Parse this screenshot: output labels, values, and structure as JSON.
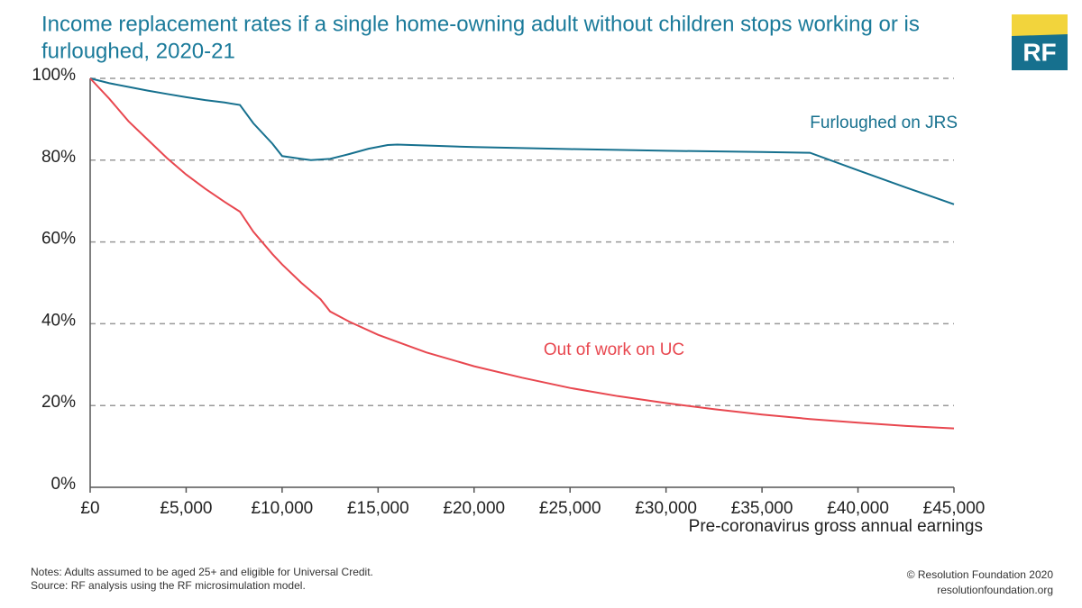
{
  "chart_data": {
    "type": "line",
    "title": "Income replacement rates if a single home-owning adult without children stops working or is furloughed, 2020-21",
    "x_label": "Pre-coronavirus gross annual earnings",
    "xlim": [
      0,
      45000
    ],
    "ylim": [
      0,
      100
    ],
    "xticks": [
      {
        "value": 0,
        "label": "£0"
      },
      {
        "value": 5000,
        "label": "£5,000"
      },
      {
        "value": 10000,
        "label": "£10,000"
      },
      {
        "value": 15000,
        "label": "£15,000"
      },
      {
        "value": 20000,
        "label": "£20,000"
      },
      {
        "value": 25000,
        "label": "£25,000"
      },
      {
        "value": 30000,
        "label": "£30,000"
      },
      {
        "value": 35000,
        "label": "£35,000"
      },
      {
        "value": 40000,
        "label": "£40,000"
      },
      {
        "value": 45000,
        "label": "£45,000"
      }
    ],
    "yticks": [
      {
        "value": 0,
        "label": "0%"
      },
      {
        "value": 20,
        "label": "20%"
      },
      {
        "value": 40,
        "label": "40%"
      },
      {
        "value": 60,
        "label": "60%"
      },
      {
        "value": 80,
        "label": "80%"
      },
      {
        "value": 100,
        "label": "100%"
      }
    ],
    "grid": true,
    "series": [
      {
        "name": "Furloughed on JRS",
        "color": "#16708e",
        "x": [
          0,
          1000,
          2000,
          3000,
          4000,
          5000,
          6000,
          7000,
          7800,
          8500,
          9500,
          10000,
          11000,
          11500,
          12500,
          13500,
          14500,
          15500,
          16000,
          18000,
          20000,
          25000,
          30000,
          35000,
          37500,
          40000,
          42500,
          45000
        ],
        "values": [
          100,
          98.8,
          97.9,
          97,
          96.2,
          95.4,
          94.7,
          94.1,
          93.5,
          89,
          84,
          81,
          80.3,
          80,
          80.3,
          81.5,
          82.8,
          83.7,
          83.8,
          83.5,
          83.2,
          82.7,
          82.3,
          82,
          81.8,
          77.5,
          73.3,
          69.2
        ]
      },
      {
        "name": "Out of work on UC",
        "color": "#e8474f",
        "x": [
          0,
          1000,
          2000,
          3000,
          4000,
          5000,
          6000,
          7000,
          7800,
          8500,
          9500,
          10000,
          11000,
          12000,
          12500,
          13500,
          15000,
          17500,
          20000,
          22500,
          25000,
          27500,
          30000,
          32500,
          35000,
          37500,
          40000,
          42500,
          45000
        ],
        "values": [
          100,
          95,
          89.5,
          85,
          80.5,
          76.5,
          73,
          69.8,
          67.4,
          62.5,
          57,
          54.5,
          50,
          46,
          43,
          40.5,
          37.3,
          33,
          29.6,
          26.8,
          24.3,
          22.3,
          20.6,
          19.1,
          17.8,
          16.7,
          15.8,
          15,
          14.4
        ]
      }
    ]
  },
  "footer": {
    "notes": "Notes: Adults assumed to be aged 25+ and eligible for Universal Credit.",
    "source": "Source: RF analysis using the RF microsimulation model.",
    "copyright": "© Resolution Foundation 2020",
    "website": "resolutionfoundation.org"
  },
  "logo": "RF"
}
